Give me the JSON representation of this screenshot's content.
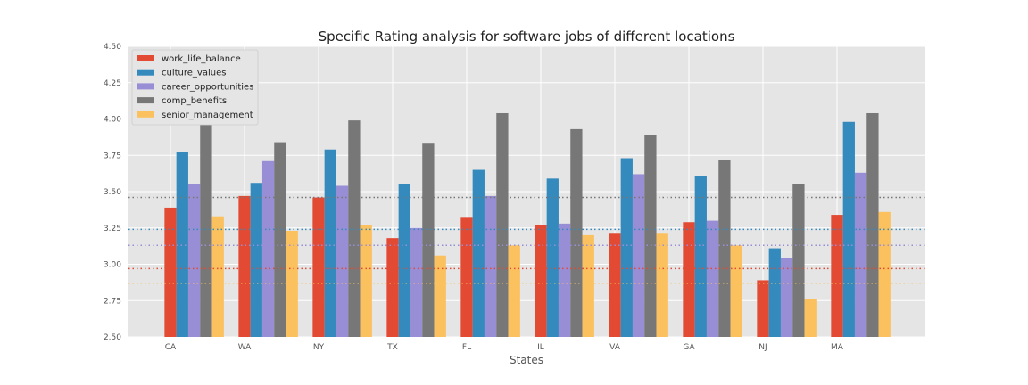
{
  "chart_data": {
    "type": "bar",
    "title": "Specific Rating analysis for software jobs of different locations",
    "xlabel": "States",
    "ylabel": "",
    "ylim": [
      2.5,
      4.5
    ],
    "yticks": [
      "2.50",
      "2.75",
      "3.00",
      "3.25",
      "3.50",
      "3.75",
      "4.00",
      "4.25",
      "4.50"
    ],
    "categories": [
      "CA",
      "WA",
      "NY",
      "TX",
      "FL",
      "IL",
      "VA",
      "GA",
      "NJ",
      "MA"
    ],
    "grid": true,
    "legend_position": "top-left",
    "series": [
      {
        "name": "work_life_balance",
        "color": "#E24A33",
        "values": [
          3.39,
          3.47,
          3.46,
          3.18,
          3.32,
          3.27,
          3.21,
          3.29,
          2.89,
          3.34
        ]
      },
      {
        "name": "culture_values",
        "color": "#348ABD",
        "values": [
          3.77,
          3.56,
          3.79,
          3.55,
          3.65,
          3.59,
          3.73,
          3.61,
          3.11,
          3.98
        ]
      },
      {
        "name": "career_opportunities",
        "color": "#988ED5",
        "values": [
          3.55,
          3.71,
          3.54,
          3.25,
          3.47,
          3.28,
          3.62,
          3.3,
          3.04,
          3.63
        ]
      },
      {
        "name": "comp_benefits",
        "color": "#777777",
        "values": [
          3.96,
          3.84,
          3.99,
          3.83,
          4.04,
          3.93,
          3.89,
          3.72,
          3.55,
          4.04
        ]
      },
      {
        "name": "senior_management",
        "color": "#FBC15E",
        "values": [
          3.33,
          3.23,
          3.27,
          3.06,
          3.13,
          3.2,
          3.21,
          3.13,
          2.76,
          3.36
        ]
      }
    ],
    "reference_lines": [
      {
        "value": 3.46,
        "color": "#777777"
      },
      {
        "value": 3.24,
        "color": "#348ABD"
      },
      {
        "value": 3.13,
        "color": "#988ED5"
      },
      {
        "value": 2.97,
        "color": "#E24A33"
      },
      {
        "value": 2.87,
        "color": "#FBC15E"
      }
    ]
  }
}
